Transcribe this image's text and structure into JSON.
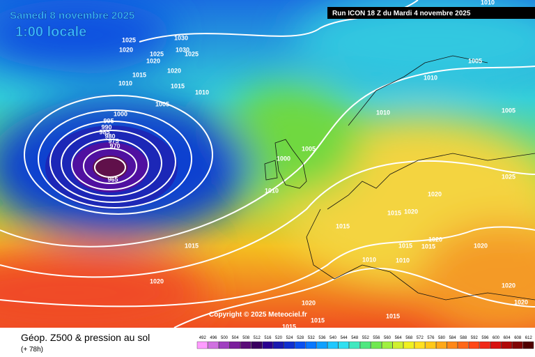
{
  "header": {
    "date": "Samedi 8 novembre 2025",
    "time": "1:00 locale",
    "run": "Run ICON 18 Z du Mardi 4 novembre 2025",
    "copyright": "Copyright © 2025 Meteociel.fr"
  },
  "footer": {
    "title": "Géop. Z500 & pression au sol",
    "lead": "(+ 78h)"
  },
  "colorbar": [
    492,
    496,
    500,
    504,
    508,
    512,
    516,
    520,
    524,
    528,
    532,
    536,
    540,
    544,
    548,
    552,
    556,
    560,
    564,
    568,
    572,
    576,
    580,
    584,
    588,
    592,
    596,
    600,
    604,
    608,
    612
  ],
  "isobar_labels": [
    "1025",
    "1020",
    "1030",
    "1030",
    "1025",
    "1025",
    "1020",
    "1020",
    "1015",
    "1010",
    "1015",
    "1010",
    "1005",
    "1000",
    "995",
    "990",
    "985",
    "980",
    "975",
    "970",
    "965",
    "1005",
    "1000",
    "1010",
    "1015",
    "1015",
    "1020",
    "1010",
    "1010",
    "1005",
    "1005",
    "1025",
    "1020",
    "1020",
    "1015",
    "1015",
    "1015",
    "1020",
    "1020",
    "1010",
    "1010",
    "1020",
    "1020",
    "1020",
    "1015",
    "1015",
    "1015",
    "1010"
  ]
}
